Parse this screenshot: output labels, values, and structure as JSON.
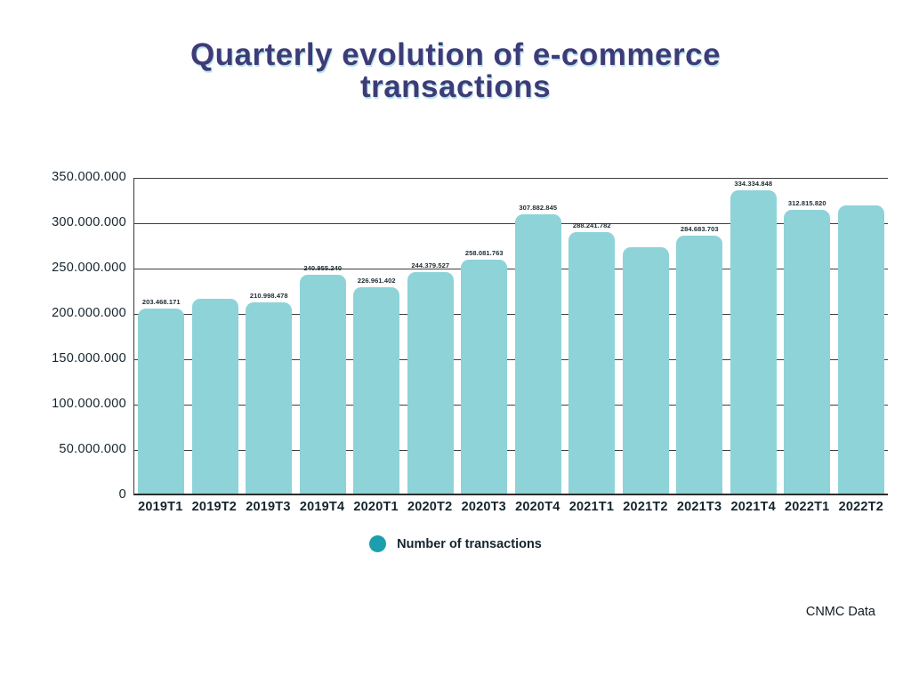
{
  "title": {
    "line1": "Quarterly evolution of e-commerce",
    "line2": "transactions"
  },
  "chart_data": {
    "type": "bar",
    "title": "Quarterly evolution of e-commerce transactions",
    "categories": [
      "2019T1",
      "2019T2",
      "2019T3",
      "2019T4",
      "2020T1",
      "2020T2",
      "2020T3",
      "2020T4",
      "2021T1",
      "2021T2",
      "2021T3",
      "2021T4",
      "2022T1",
      "2022T2"
    ],
    "values": [
      203468171,
      215000000,
      210998478,
      240955240,
      226961402,
      244379527,
      258081763,
      307882845,
      288241782,
      272000000,
      284683703,
      334334848,
      312815820,
      318000000
    ],
    "value_labels": [
      "203.468.171",
      "",
      "210.998.478",
      "240.955.240",
      "226.961.402",
      "244.379.527",
      "258.081.763",
      "307.882.845",
      "288.241.782",
      "",
      "284.683.703",
      "334.334.848",
      "312.815.820",
      ""
    ],
    "y_ticks": [
      "350.000.000",
      "300.000.000",
      "250.000.000",
      "200.000.000",
      "150.000.000",
      "100.000.000",
      "50.000.000",
      "0"
    ],
    "ylim": [
      0,
      350000000
    ],
    "xlabel": "",
    "ylabel": "",
    "grid": true,
    "legend": "Number of transactions",
    "legend_position": "bottom-center",
    "bar_color": "#8ed3d8",
    "legend_dot_color": "#1b9fae",
    "title_color": "#3e3b78"
  },
  "footer": {
    "source": "CNMC Data"
  }
}
